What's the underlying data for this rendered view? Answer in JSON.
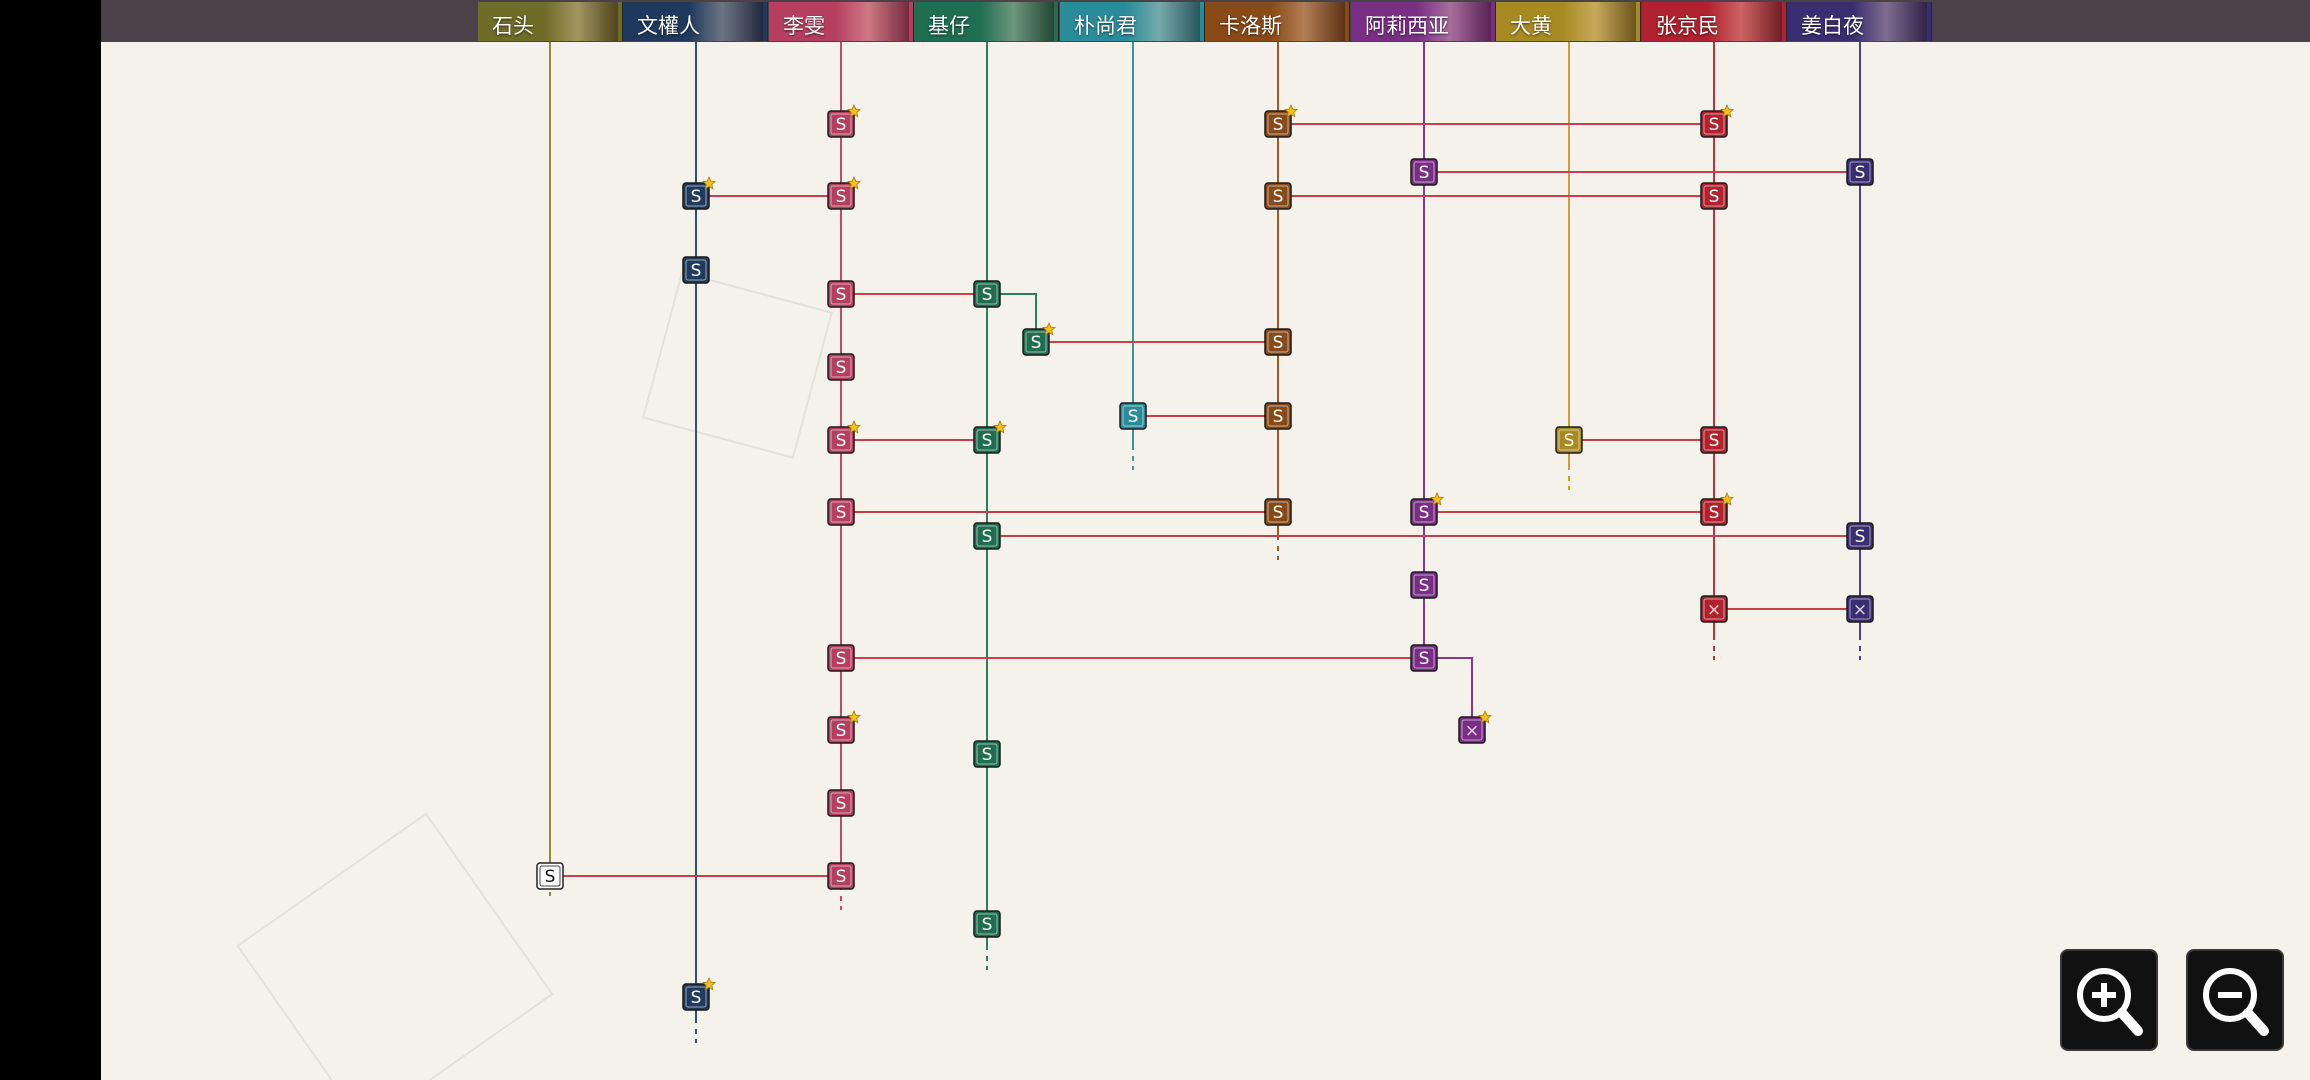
{
  "characters": [
    {
      "id": "shitou",
      "name": "石头",
      "color": "#6e6c26",
      "line": "#8c8a3a"
    },
    {
      "id": "wenquanren",
      "name": "文權人",
      "color": "#1f3a5e",
      "line": "#2d4f7c"
    },
    {
      "id": "liwen",
      "name": "李雯",
      "color": "#b43f5f",
      "line": "#c24b67"
    },
    {
      "id": "jizai",
      "name": "基仔",
      "color": "#1f6e52",
      "line": "#2e7d5f"
    },
    {
      "id": "pushangjun",
      "name": "朴尚君",
      "color": "#2a8c9a",
      "line": "#3896a3"
    },
    {
      "id": "kaluosi",
      "name": "卡洛斯",
      "color": "#8a4a18",
      "line": "#a05a24"
    },
    {
      "id": "aliexiya",
      "name": "阿莉西亚",
      "color": "#7a2f86",
      "line": "#86388f"
    },
    {
      "id": "dahuang",
      "name": "大黄",
      "color": "#a88a22",
      "line": "#c9a12e"
    },
    {
      "id": "zhangjingmin",
      "name": "张京民",
      "color": "#b0222e",
      "line": "#c0303c"
    },
    {
      "id": "jiangbaiye",
      "name": "姜白夜",
      "color": "#3a2e72",
      "line": "#4b3f86"
    }
  ],
  "node_label": "S",
  "locked_label": "×",
  "icons": {
    "zoom_in": "zoom-in-icon",
    "zoom_out": "zoom-out-icon",
    "star": "star-icon"
  },
  "colors": {
    "link_line": "#c8404a",
    "star": "#f2c21a",
    "canvas": "#f4f2eb"
  }
}
